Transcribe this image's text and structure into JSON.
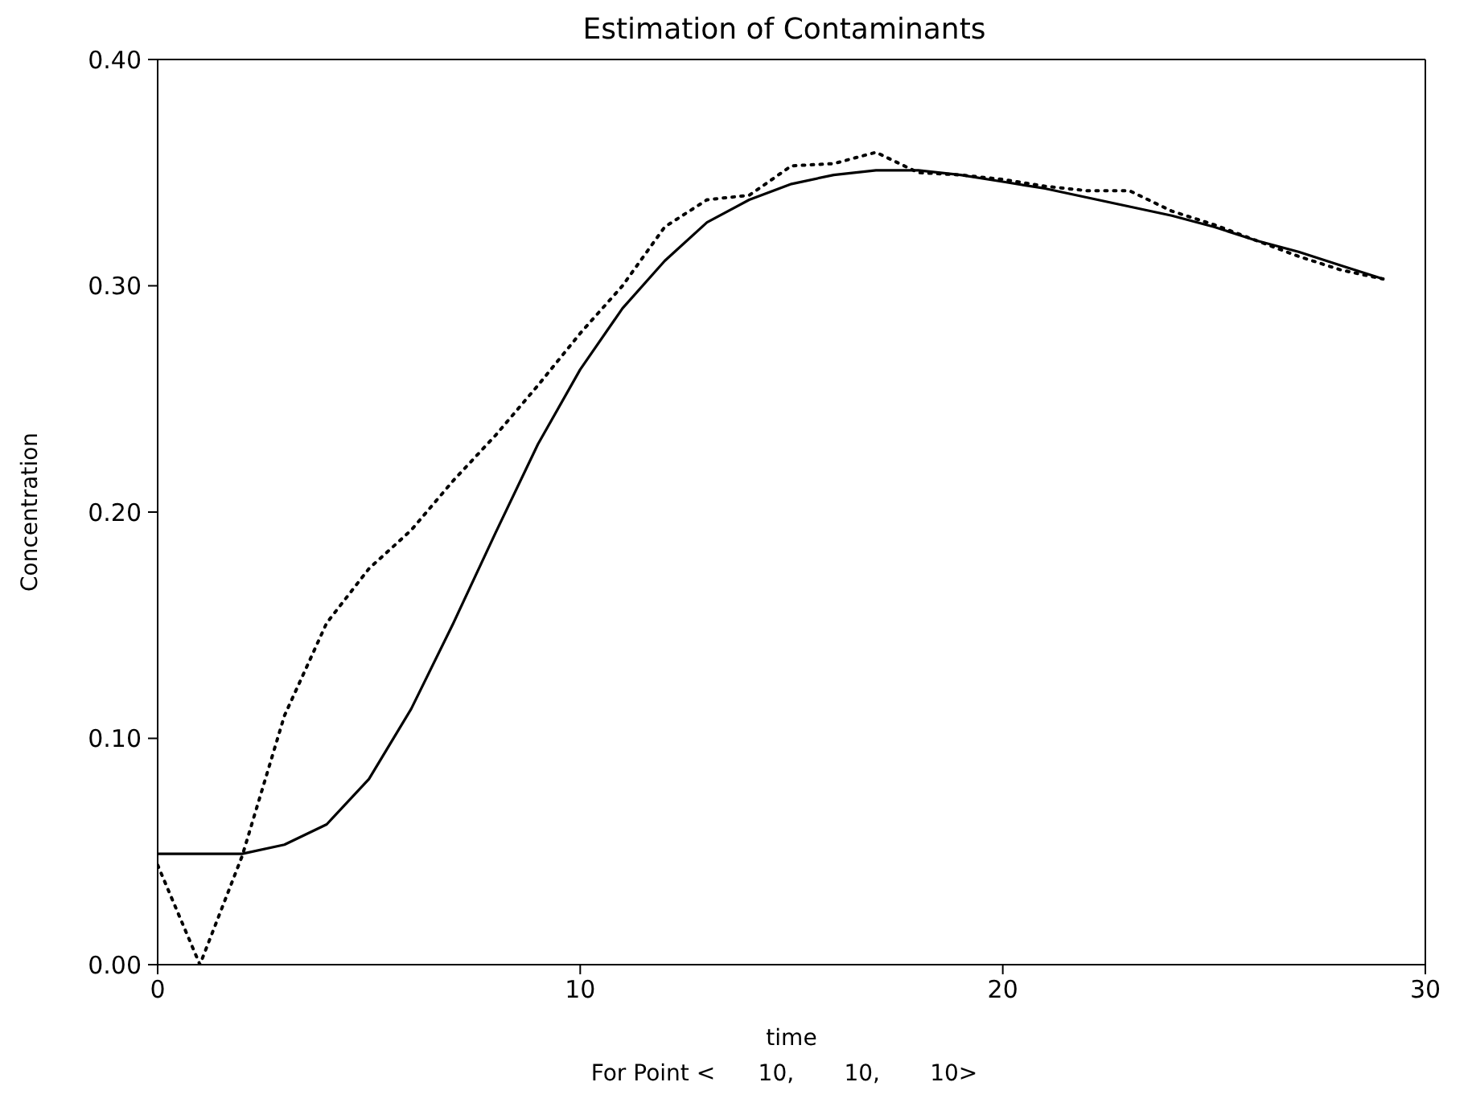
{
  "chart_data": {
    "type": "line",
    "title": "Estimation of Contaminants",
    "xlabel": "time",
    "ylabel": "Concentration",
    "annotations": [
      "For Point <      10,       10,       10>"
    ],
    "x": [
      0,
      1,
      2,
      3,
      4,
      5,
      6,
      7,
      8,
      9,
      10,
      11,
      12,
      13,
      14,
      15,
      16,
      17,
      18,
      19,
      20,
      21,
      22,
      23,
      24,
      25,
      26,
      27,
      28,
      29
    ],
    "series": [
      {
        "color": "#000000",
        "line_style": "solid",
        "values": [
          0.049,
          0.049,
          0.049,
          0.053,
          0.062,
          0.082,
          0.113,
          0.151,
          0.191,
          0.23,
          0.263,
          0.29,
          0.311,
          0.328,
          0.338,
          0.345,
          0.349,
          0.351,
          0.351,
          0.349,
          0.346,
          0.343,
          0.339,
          0.335,
          0.331,
          0.326,
          0.32,
          0.315,
          0.309,
          0.303
        ]
      },
      {
        "color": "#000000",
        "line_style": "dotted",
        "values": [
          0.044,
          0.0,
          0.048,
          0.11,
          0.151,
          0.175,
          0.192,
          0.214,
          0.234,
          0.256,
          0.279,
          0.3,
          0.326,
          0.338,
          0.34,
          0.353,
          0.354,
          0.359,
          0.35,
          0.349,
          0.347,
          0.344,
          0.342,
          0.342,
          0.333,
          0.327,
          0.32,
          0.313,
          0.307,
          0.303
        ]
      }
    ],
    "xlim": [
      0,
      30
    ],
    "xticks": [
      0,
      10,
      20,
      30
    ],
    "ylim": [
      0,
      0.4
    ],
    "yticks": [
      {
        "value": 0,
        "label": "0.00"
      },
      {
        "value": 0.1,
        "label": "0.10"
      },
      {
        "value": 0.2,
        "label": "0.20"
      },
      {
        "value": 0.3,
        "label": "0.30"
      },
      {
        "value": 0.4,
        "label": "0.40"
      }
    ],
    "grid": false,
    "legend": false,
    "marker": "none"
  }
}
